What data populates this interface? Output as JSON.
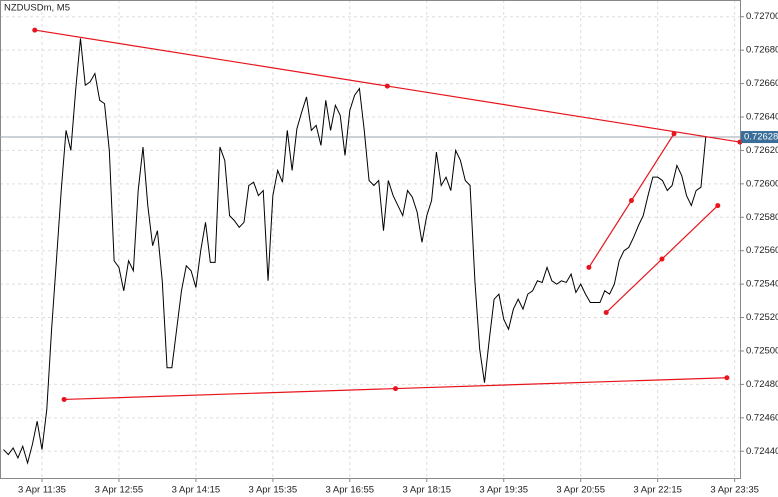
{
  "chart_data": {
    "type": "line",
    "title": "NZDUSDm, M5",
    "categories": [
      null,
      null,
      null,
      null,
      null,
      null,
      null,
      null,
      "3 Apr 11:35",
      null,
      null,
      null,
      null,
      null,
      null,
      null,
      null,
      null,
      null,
      null,
      null,
      null,
      null,
      null,
      "3 Apr 12:55",
      null,
      null,
      null,
      null,
      null,
      null,
      null,
      null,
      null,
      null,
      null,
      null,
      null,
      null,
      null,
      "3 Apr 14:15",
      null,
      null,
      null,
      null,
      null,
      null,
      null,
      null,
      null,
      null,
      null,
      null,
      null,
      null,
      null,
      "3 Apr 15:35",
      null,
      null,
      null,
      null,
      null,
      null,
      null,
      null,
      null,
      null,
      null,
      null,
      null,
      null,
      null,
      "3 Apr 16:55",
      null,
      null,
      null,
      null,
      null,
      null,
      null,
      null,
      null,
      null,
      null,
      null,
      null,
      null,
      null,
      "3 Apr 18:15",
      null,
      null,
      null,
      null,
      null,
      null,
      null,
      null,
      null,
      null,
      null,
      null,
      null,
      null,
      null,
      "3 Apr 19:35",
      null,
      null,
      null,
      null,
      null,
      null,
      null,
      null,
      null,
      null,
      null,
      null,
      null,
      null,
      null,
      "3 Apr 20:55",
      null,
      null,
      null,
      null,
      null,
      null,
      null,
      null,
      null,
      null,
      null,
      null,
      null,
      null,
      null,
      "3 Apr 22:15",
      null,
      null,
      null,
      null,
      null,
      null,
      null,
      null,
      null,
      null,
      null,
      null,
      null,
      null,
      null,
      "3 Apr 23:35"
    ],
    "values": [
      0.72441,
      0.72438,
      0.72442,
      0.72436,
      0.72443,
      0.72433,
      0.72444,
      0.72458,
      0.72441,
      0.72465,
      0.72513,
      0.72554,
      0.72596,
      0.72632,
      0.7262,
      0.72656,
      0.72687,
      0.72659,
      0.72661,
      0.72666,
      0.7265,
      0.72648,
      0.7262,
      0.72554,
      0.7255,
      0.72536,
      0.72554,
      0.72548,
      0.72596,
      0.72622,
      0.72587,
      0.72563,
      0.72572,
      0.72542,
      0.7249,
      0.7249,
      0.72513,
      0.72536,
      0.72551,
      0.72548,
      0.72538,
      0.7256,
      0.72577,
      0.72553,
      0.72553,
      0.72622,
      0.72614,
      0.72581,
      0.72578,
      0.72574,
      0.72577,
      0.72599,
      0.72601,
      0.72593,
      0.72596,
      0.72542,
      0.72593,
      0.72608,
      0.72601,
      0.72632,
      0.72608,
      0.72633,
      0.72643,
      0.72652,
      0.72632,
      0.72635,
      0.72623,
      0.7265,
      0.72632,
      0.72647,
      0.72641,
      0.72617,
      0.72644,
      0.72653,
      0.72657,
      0.72632,
      0.72602,
      0.72599,
      0.72602,
      0.72572,
      0.72602,
      0.72593,
      0.72587,
      0.72581,
      0.72596,
      0.72592,
      0.72583,
      0.72565,
      0.72581,
      0.7259,
      0.72619,
      0.72599,
      0.72604,
      0.72596,
      0.7262,
      0.72614,
      0.72602,
      0.72599,
      0.72542,
      0.72501,
      0.72481,
      0.72507,
      0.72531,
      0.72534,
      0.72519,
      0.72513,
      0.72525,
      0.72531,
      0.72525,
      0.72534,
      0.72536,
      0.72542,
      0.72541,
      0.7255,
      0.72542,
      0.7254,
      0.72542,
      0.72541,
      0.72546,
      0.72535,
      0.7254,
      0.72534,
      0.72529,
      0.72529,
      0.72529,
      0.72536,
      0.72534,
      0.7254,
      0.72554,
      0.7256,
      0.72562,
      0.72568,
      0.72575,
      0.72581,
      0.72593,
      0.72604,
      0.72604,
      0.72602,
      0.72596,
      0.72599,
      0.72611,
      0.72605,
      0.72593,
      0.72587,
      0.72596,
      0.72598,
      0.72628,
      null,
      null,
      null,
      null,
      null,
      null
    ],
    "color": "#000000",
    "ylim": [
      0.72424,
      0.7271
    ],
    "yticks": [
      {
        "value": 0.7244,
        "label": "0.72440"
      },
      {
        "value": 0.7246,
        "label": "0.72460"
      },
      {
        "value": 0.7248,
        "label": "0.72480"
      },
      {
        "value": 0.725,
        "label": "0.72500"
      },
      {
        "value": 0.7252,
        "label": "0.72520"
      },
      {
        "value": 0.7254,
        "label": "0.72540"
      },
      {
        "value": 0.7256,
        "label": "0.72560"
      },
      {
        "value": 0.7258,
        "label": "0.72580"
      },
      {
        "value": 0.726,
        "label": "0.72600"
      },
      {
        "value": 0.7262,
        "label": "0.72620"
      },
      {
        "value": 0.7264,
        "label": "0.72640"
      },
      {
        "value": 0.7266,
        "label": "0.72660"
      },
      {
        "value": 0.7268,
        "label": "0.72680"
      },
      {
        "value": 0.727,
        "label": "0.72700"
      }
    ],
    "grid": true,
    "current_price": 0.72628,
    "trendline_color": "#e8141c",
    "trendlines": [
      {
        "x": [
          6.5,
          153.1
        ],
        "y": [
          0.72692,
          0.72625
        ]
      },
      {
        "x": [
          12.6,
          150.4
        ],
        "y": [
          0.72471,
          0.72484
        ]
      },
      {
        "x": [
          121.7,
          139.4
        ],
        "y": [
          0.7255,
          0.7263
        ]
      },
      {
        "x": [
          125.3,
          148.5
        ],
        "y": [
          0.72523,
          0.72587
        ]
      }
    ]
  }
}
